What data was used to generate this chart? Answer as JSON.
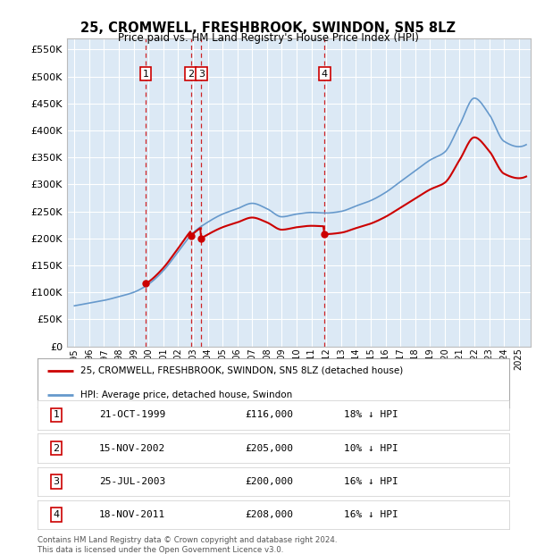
{
  "title": "25, CROMWELL, FRESHBROOK, SWINDON, SN5 8LZ",
  "subtitle": "Price paid vs. HM Land Registry's House Price Index (HPI)",
  "legend_label_red": "25, CROMWELL, FRESHBROOK, SWINDON, SN5 8LZ (detached house)",
  "legend_label_blue": "HPI: Average price, detached house, Swindon",
  "footer1": "Contains HM Land Registry data © Crown copyright and database right 2024.",
  "footer2": "This data is licensed under the Open Government Licence v3.0.",
  "transactions": [
    {
      "num": 1,
      "date": "21-OCT-1999",
      "price": 116000,
      "hpi_pct": "18% ↓ HPI",
      "year": 1999.8
    },
    {
      "num": 2,
      "date": "15-NOV-2002",
      "price": 205000,
      "hpi_pct": "10% ↓ HPI",
      "year": 2002.87
    },
    {
      "num": 3,
      "date": "25-JUL-2003",
      "price": 200000,
      "hpi_pct": "16% ↓ HPI",
      "year": 2003.57
    },
    {
      "num": 4,
      "date": "18-NOV-2011",
      "price": 208000,
      "hpi_pct": "16% ↓ HPI",
      "year": 2011.88
    }
  ],
  "sale_years": [
    1999.8,
    2002.87,
    2003.57,
    2011.88
  ],
  "sale_prices": [
    116000,
    205000,
    200000,
    208000
  ],
  "ylim": [
    0,
    570000
  ],
  "yticks": [
    0,
    50000,
    100000,
    150000,
    200000,
    250000,
    300000,
    350000,
    400000,
    450000,
    500000,
    550000
  ],
  "background_color": "#dce9f5",
  "grid_color": "#ffffff",
  "red_color": "#cc0000",
  "blue_color": "#6699cc",
  "hpi_knots_x": [
    1995,
    1996,
    1997,
    1998,
    1999,
    2000,
    2001,
    2002,
    2003,
    2004,
    2005,
    2006,
    2007,
    2008,
    2009,
    2010,
    2011,
    2012,
    2013,
    2014,
    2015,
    2016,
    2017,
    2018,
    2019,
    2020,
    2021,
    2022,
    2023,
    2024,
    2025
  ],
  "hpi_knots_y": [
    75000,
    80000,
    85000,
    92000,
    100000,
    115000,
    140000,
    175000,
    210000,
    230000,
    245000,
    255000,
    265000,
    255000,
    240000,
    245000,
    248000,
    247000,
    250000,
    260000,
    270000,
    285000,
    305000,
    325000,
    345000,
    360000,
    410000,
    460000,
    430000,
    380000,
    370000
  ]
}
